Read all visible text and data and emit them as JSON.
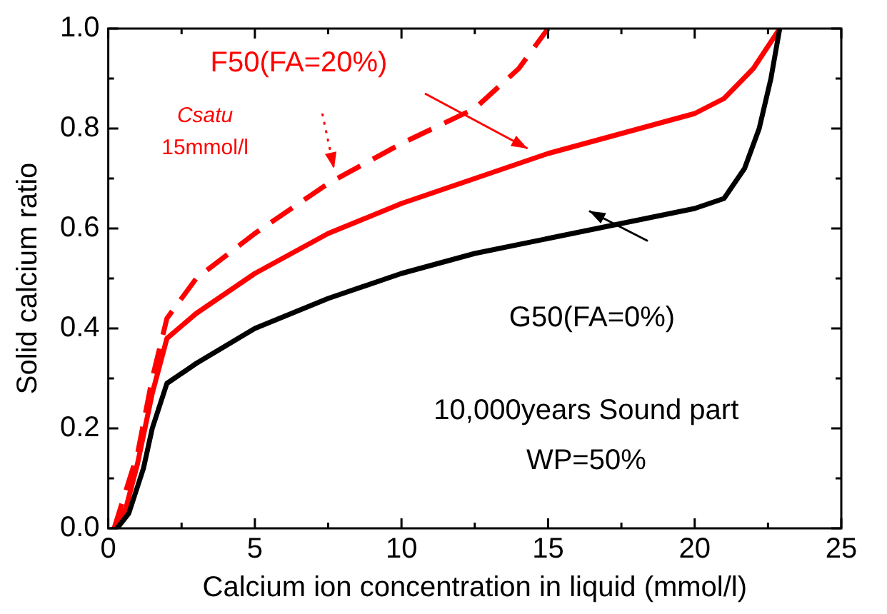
{
  "chart_data": {
    "type": "line",
    "xlabel": "Calcium ion concentration in liquid (mmol/l)",
    "ylabel": "Solid calcium ratio",
    "xlim": [
      0,
      25
    ],
    "xticks": [
      0,
      5,
      10,
      15,
      20,
      25
    ],
    "ylim": [
      0,
      1
    ],
    "yticks": [
      {
        "value": 0,
        "label": "0.0"
      },
      {
        "value": 0.2,
        "label": "0.2"
      },
      {
        "value": 0.4,
        "label": "0.4"
      },
      {
        "value": 0.6,
        "label": "0.6"
      },
      {
        "value": 0.8,
        "label": "0.8"
      },
      {
        "value": 1,
        "label": "1.0"
      }
    ],
    "grid": false,
    "legend": false,
    "marker": "none",
    "series": [
      {
        "color": "#000000",
        "line_style": "solid",
        "x": [
          0.3,
          0.7,
          1.2,
          1.5,
          2,
          3,
          5,
          7.5,
          10,
          12.5,
          15,
          17.5,
          20,
          21,
          21.7,
          22.2,
          22.6,
          22.9
        ],
        "values": [
          0,
          0.03,
          0.12,
          0.2,
          0.29,
          0.33,
          0.4,
          0.46,
          0.51,
          0.55,
          0.58,
          0.61,
          0.64,
          0.66,
          0.72,
          0.8,
          0.9,
          1.0
        ]
      },
      {
        "color": "#ff0000",
        "line_style": "solid",
        "x": [
          0.2,
          0.6,
          1,
          1.5,
          2,
          3,
          5,
          7.5,
          10,
          12.5,
          15,
          17.5,
          20,
          21,
          22,
          22.9
        ],
        "values": [
          0,
          0.04,
          0.13,
          0.27,
          0.38,
          0.43,
          0.51,
          0.59,
          0.65,
          0.7,
          0.75,
          0.79,
          0.83,
          0.86,
          0.92,
          1.0
        ]
      },
      {
        "color": "#ff0000",
        "line_style": "dashed",
        "x": [
          0.2,
          1,
          1.5,
          2,
          3,
          5,
          7.5,
          10,
          12.5,
          14,
          15
        ],
        "values": [
          0,
          0.15,
          0.3,
          0.42,
          0.5,
          0.59,
          0.69,
          0.77,
          0.84,
          0.92,
          1.0
        ]
      }
    ],
    "annotations": [
      "F50(FA=20%)",
      "G50(FA=0%)",
      "Csatu",
      "15mmol/l",
      "10,000years Sound part",
      "WP=50%"
    ]
  }
}
